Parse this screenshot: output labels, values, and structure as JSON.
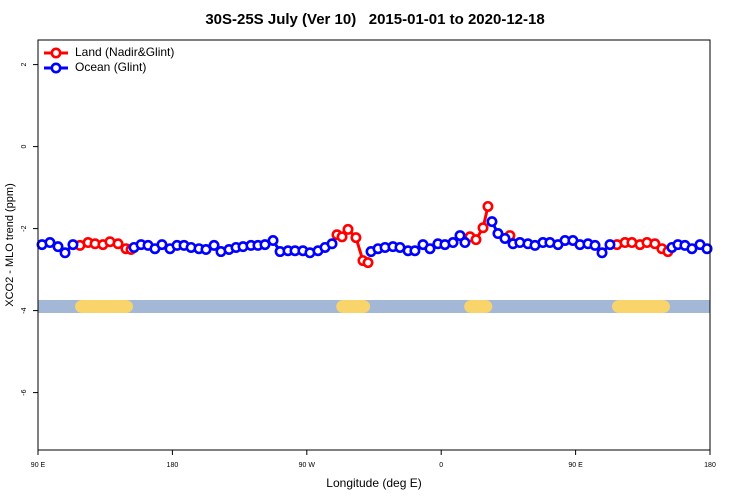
{
  "chart_data": {
    "type": "line",
    "title": "30S-25S July (Ver 10)   2015-01-01 to 2020-12-18",
    "xlabel": "Longitude (deg E)",
    "ylabel": "XCO2 - MLO trend (ppm)",
    "xlim": [
      90,
      540
    ],
    "xticks": [
      {
        "value": 90,
        "label": "90 E"
      },
      {
        "value": 180,
        "label": "180"
      },
      {
        "value": 270,
        "label": "90 W"
      },
      {
        "value": 360,
        "label": "0"
      },
      {
        "value": 450,
        "label": "90 E"
      },
      {
        "value": 540,
        "label": "180"
      }
    ],
    "ylim": [
      -7.4,
      2.6
    ],
    "yticks": [
      -6,
      -4,
      -2,
      0,
      2
    ],
    "legend": "top-left",
    "x": [
      92.7,
      98.0,
      103.4,
      108.1,
      113.4,
      118.1,
      123.5,
      128.2,
      133.5,
      138.2,
      143.6,
      148.9,
      152.3,
      154.3,
      159.0,
      163.7,
      168.3,
      173.0,
      178.4,
      183.1,
      187.8,
      192.5,
      197.8,
      202.5,
      207.9,
      212.5,
      217.9,
      222.6,
      227.3,
      232.6,
      237.3,
      242.0,
      247.4,
      252.1,
      257.4,
      262.1,
      267.4,
      272.1,
      277.5,
      282.2,
      286.9,
      290.2,
      293.6,
      297.6,
      302.9,
      307.6,
      311.0,
      313.0,
      317.7,
      322.4,
      327.7,
      332.4,
      337.8,
      342.4,
      347.8,
      352.5,
      357.8,
      362.5,
      367.9,
      372.6,
      375.9,
      379.3,
      383.3,
      388.0,
      391.3,
      394.0,
      398.0,
      402.7,
      406.0,
      408.1,
      412.7,
      418.1,
      422.8,
      428.1,
      432.8,
      438.2,
      442.9,
      448.2,
      452.9,
      458.3,
      463.0,
      467.7,
      473.0,
      477.7,
      483.1,
      487.7,
      493.1,
      497.8,
      503.1,
      507.8,
      511.8,
      514.5,
      518.5,
      523.2,
      527.9,
      533.3,
      538.0
    ],
    "series": [
      {
        "name": "Land (Nadir&Glint)",
        "color": "#ff0000",
        "values": [
          null,
          null,
          null,
          null,
          null,
          -2.41,
          -2.34,
          -2.37,
          -2.39,
          -2.32,
          -2.37,
          -2.49,
          -2.51,
          null,
          null,
          null,
          null,
          null,
          null,
          null,
          null,
          null,
          null,
          null,
          null,
          null,
          null,
          null,
          null,
          null,
          null,
          null,
          null,
          null,
          null,
          null,
          null,
          null,
          null,
          null,
          null,
          -2.15,
          -2.2,
          -2.02,
          -2.22,
          -2.78,
          -2.83,
          null,
          null,
          null,
          null,
          null,
          null,
          null,
          null,
          null,
          null,
          null,
          null,
          null,
          null,
          -2.2,
          -2.27,
          -1.98,
          -1.46,
          null,
          null,
          null,
          -2.17,
          null,
          null,
          null,
          null,
          null,
          null,
          null,
          null,
          null,
          null,
          null,
          null,
          null,
          null,
          -2.39,
          -2.34,
          -2.34,
          -2.39,
          -2.34,
          -2.37,
          -2.49,
          -2.56,
          null,
          null,
          null,
          null,
          null,
          null
        ]
      },
      {
        "name": "Ocean (Glint)",
        "color": "#0000ff",
        "values": [
          -2.39,
          -2.34,
          -2.44,
          -2.59,
          -2.39,
          null,
          null,
          null,
          null,
          null,
          null,
          null,
          null,
          -2.46,
          -2.39,
          -2.41,
          -2.49,
          -2.39,
          -2.49,
          -2.41,
          -2.41,
          -2.46,
          -2.49,
          -2.51,
          -2.41,
          -2.56,
          -2.51,
          -2.46,
          -2.44,
          -2.41,
          -2.41,
          -2.39,
          -2.29,
          -2.56,
          -2.54,
          -2.54,
          -2.54,
          -2.59,
          -2.54,
          -2.46,
          -2.37,
          null,
          null,
          null,
          null,
          null,
          null,
          -2.56,
          -2.49,
          -2.46,
          -2.44,
          -2.46,
          -2.54,
          -2.54,
          -2.39,
          -2.49,
          -2.37,
          -2.39,
          -2.34,
          -2.17,
          -2.34,
          null,
          null,
          null,
          null,
          -1.83,
          -2.12,
          -2.24,
          null,
          -2.37,
          -2.34,
          -2.37,
          -2.41,
          -2.34,
          -2.34,
          -2.39,
          -2.29,
          -2.29,
          -2.39,
          -2.37,
          -2.41,
          -2.59,
          -2.39,
          null,
          null,
          null,
          null,
          null,
          null,
          null,
          null,
          -2.46,
          -2.39,
          -2.41,
          -2.49,
          -2.39,
          -2.49
        ]
      }
    ],
    "surface_strip": {
      "y": -3.9,
      "ocean_color": "#a3b8d7",
      "land_color": "#f8d46b",
      "land_ranges": [
        [
          114.8,
          153.6
        ],
        [
          289.7,
          312.4
        ],
        [
          375.4,
          394.2
        ],
        [
          474.4,
          513.2
        ]
      ]
    }
  }
}
